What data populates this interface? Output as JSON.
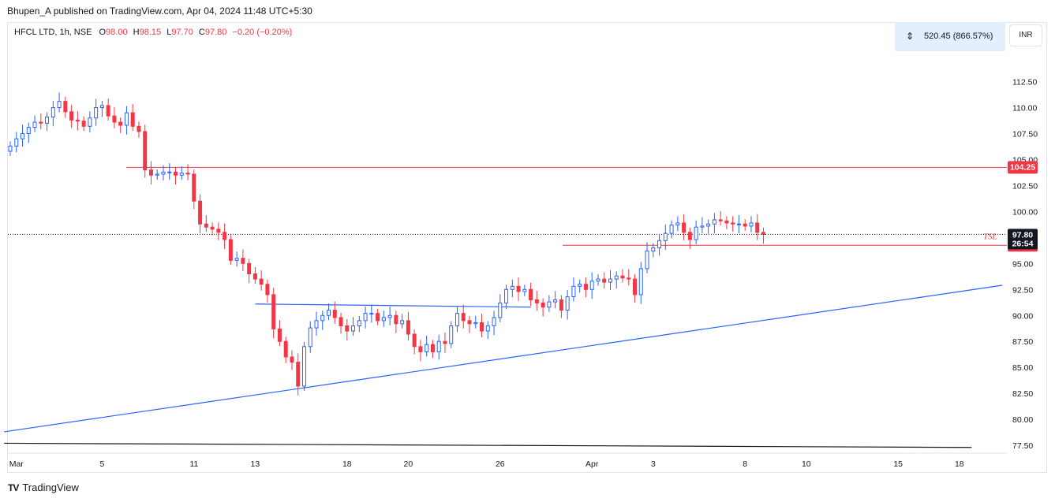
{
  "header": {
    "published_by": "Bhupen_A published on TradingView.com, Apr 04, 2024 11:48 UTC+5:30"
  },
  "legend": {
    "symbol": "HFCL LTD, 1h, NSE",
    "o_label": "O",
    "o_value": "98.00",
    "h_label": "H",
    "h_value": "98.15",
    "l_label": "L",
    "l_value": "97.70",
    "c_label": "C",
    "c_value": "97.80",
    "change": "−0.20 (−0.20%)"
  },
  "measure": {
    "icon": "measure-range-icon",
    "text": "520.45 (866.57%)"
  },
  "currency_button": "INR",
  "footer": {
    "brand": "TradingView",
    "logo": "TV"
  },
  "colors": {
    "up": "#2962ff",
    "down": "#f23645",
    "trendline": "#2962ff",
    "level": "#f23645",
    "price_tag": "#131722"
  },
  "chart_data": {
    "type": "candlestick",
    "title": "",
    "xlabel": "",
    "ylabel": "",
    "ylim": [
      76.9,
      115.35
    ],
    "y_ticks": [
      "112.50",
      "110.00",
      "107.50",
      "105.00",
      "102.50",
      "100.00",
      "97.50",
      "95.00",
      "92.50",
      "90.00",
      "87.50",
      "85.00",
      "82.50",
      "80.00",
      "77.50"
    ],
    "x_ticks": [
      {
        "label": "Mar",
        "bar": 1
      },
      {
        "label": "5",
        "bar": 15
      },
      {
        "label": "11",
        "bar": 30
      },
      {
        "label": "13",
        "bar": 40
      },
      {
        "label": "18",
        "bar": 55
      },
      {
        "label": "20",
        "bar": 65
      },
      {
        "label": "26",
        "bar": 80
      },
      {
        "label": "Apr",
        "bar": 95
      },
      {
        "label": "3",
        "bar": 105
      },
      {
        "label": "8",
        "bar": 120
      },
      {
        "label": "10",
        "bar": 130
      },
      {
        "label": "15",
        "bar": 145
      },
      {
        "label": "18",
        "bar": 155
      }
    ],
    "bars_spacing_note": "",
    "closes": [
      106.3,
      107.0,
      107.5,
      108.1,
      108.6,
      108.5,
      109.1,
      110.0,
      110.6,
      109.6,
      108.8,
      108.7,
      108.2,
      109.0,
      110.0,
      110.2,
      109.2,
      108.6,
      108.3,
      109.5,
      108.2,
      107.7,
      104.0,
      103.5,
      103.6,
      103.8,
      103.8,
      103.5,
      103.7,
      103.6,
      101.0,
      98.8,
      98.5,
      98.3,
      98.0,
      97.3,
      95.3,
      95.5,
      95.0,
      94.0,
      93.5,
      93.0,
      92.0,
      88.7,
      87.5,
      86.0,
      85.5,
      83.2,
      87.0,
      88.8,
      89.5,
      90.0,
      90.5,
      89.8,
      89.0,
      88.5,
      89.0,
      89.5,
      90.2,
      90.2,
      89.5,
      89.8,
      90.0,
      89.2,
      89.5,
      88.2,
      87.0,
      86.5,
      87.2,
      86.5,
      87.5,
      87.3,
      89.0,
      90.2,
      89.5,
      89.2,
      89.3,
      88.5,
      89.0,
      89.8,
      91.2,
      92.5,
      92.8,
      92.3,
      92.5,
      91.5,
      91.2,
      90.8,
      91.3,
      91.5,
      90.5,
      91.8,
      92.8,
      93.0,
      92.5,
      93.3,
      93.5,
      93.2,
      93.5,
      93.8,
      93.6,
      93.5,
      92.0,
      94.5,
      96.2,
      96.5,
      97.2,
      97.9,
      98.7,
      98.9,
      98.0,
      97.3,
      98.5,
      98.6,
      98.8,
      99.2,
      99.1,
      98.9,
      98.8,
      98.8,
      98.6,
      98.9,
      98.0,
      97.8
    ],
    "opens_note": "",
    "current_price": "97.80",
    "countdown": "26:54",
    "levels": [
      {
        "name": "resistance",
        "value": 104.25,
        "label": "104.25",
        "color": "#f23645"
      },
      {
        "name": "tsl",
        "value": 96.75,
        "label": "96.75",
        "text": "TSL",
        "color": "#f23645"
      }
    ],
    "trendlines": [
      {
        "name": "rising-support",
        "from": [
          -1,
          78.8
        ],
        "to": [
          162,
          92.9
        ],
        "color": "#2962ff"
      },
      {
        "name": "neckline",
        "from": [
          40,
          91.1
        ],
        "to": [
          85,
          90.8
        ],
        "color": "#2962ff"
      },
      {
        "name": "long-term-line",
        "from": [
          -1,
          77.7
        ],
        "to": [
          157,
          77.3
        ],
        "color": "#131722"
      }
    ]
  }
}
